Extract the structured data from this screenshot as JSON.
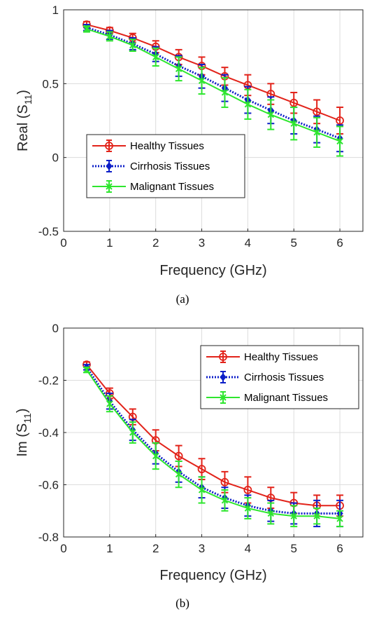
{
  "chart_data": [
    {
      "type": "line",
      "caption": "(a)",
      "xlabel": "Frequency (GHz)",
      "ylabel_main": "Real (S",
      "ylabel_sub": "11",
      "ylabel_end": ")",
      "xlim": [
        0,
        6.5
      ],
      "ylim": [
        -0.5,
        1
      ],
      "xticks": [
        0,
        1,
        2,
        3,
        4,
        5,
        6
      ],
      "xtick_labels": [
        "0",
        "1",
        "2",
        "3",
        "4",
        "5",
        "6"
      ],
      "yticks": [
        -0.5,
        0,
        0.5,
        1
      ],
      "ytick_labels": [
        "-0.5",
        "0",
        "0.5",
        "1"
      ],
      "grid": true,
      "legend_position": "left-lower",
      "x": [
        0.5,
        1,
        1.5,
        2,
        2.5,
        3,
        3.5,
        4,
        4.5,
        5,
        5.5,
        6
      ],
      "series": [
        {
          "name": "Healthy Tissues",
          "color": "#e2231a",
          "style": "solid-circle",
          "values": [
            0.9,
            0.86,
            0.81,
            0.75,
            0.68,
            0.62,
            0.55,
            0.49,
            0.43,
            0.37,
            0.31,
            0.25
          ],
          "errors": [
            0.02,
            0.02,
            0.03,
            0.04,
            0.05,
            0.06,
            0.06,
            0.07,
            0.07,
            0.07,
            0.08,
            0.09
          ]
        },
        {
          "name": "Cirrhosis Tissues",
          "color": "#0c1ec8",
          "style": "dotted-diamond",
          "values": [
            0.88,
            0.83,
            0.77,
            0.7,
            0.62,
            0.55,
            0.47,
            0.39,
            0.32,
            0.25,
            0.19,
            0.13
          ],
          "errors": [
            0.02,
            0.03,
            0.04,
            0.05,
            0.07,
            0.08,
            0.09,
            0.09,
            0.09,
            0.09,
            0.09,
            0.09
          ]
        },
        {
          "name": "Malignant Tissues",
          "color": "#2ee62e",
          "style": "solid-x",
          "values": [
            0.87,
            0.82,
            0.76,
            0.68,
            0.6,
            0.52,
            0.44,
            0.36,
            0.29,
            0.23,
            0.17,
            0.11
          ],
          "errors": [
            0.02,
            0.03,
            0.04,
            0.06,
            0.08,
            0.09,
            0.1,
            0.1,
            0.1,
            0.11,
            0.1,
            0.1
          ]
        }
      ]
    },
    {
      "type": "line",
      "caption": "(b)",
      "xlabel": "Frequency (GHz)",
      "ylabel_main": "Im (S",
      "ylabel_sub": "11",
      "ylabel_end": ")",
      "xlim": [
        0,
        6.5
      ],
      "ylim": [
        -0.8,
        0
      ],
      "xticks": [
        0,
        1,
        2,
        3,
        4,
        5,
        6
      ],
      "xtick_labels": [
        "0",
        "1",
        "2",
        "3",
        "4",
        "5",
        "6"
      ],
      "yticks": [
        -0.8,
        -0.6,
        -0.4,
        -0.2,
        0
      ],
      "ytick_labels": [
        "-0.8",
        "-0.6",
        "-0.4",
        "-0.2",
        "0"
      ],
      "grid": true,
      "legend_position": "top-right",
      "x": [
        0.5,
        1,
        1.5,
        2,
        2.5,
        3,
        3.5,
        4,
        4.5,
        5,
        5.5,
        6
      ],
      "series": [
        {
          "name": "Healthy Tissues",
          "color": "#e2231a",
          "style": "solid-circle",
          "values": [
            -0.14,
            -0.25,
            -0.34,
            -0.43,
            -0.49,
            -0.54,
            -0.59,
            -0.62,
            -0.65,
            -0.67,
            -0.68,
            -0.68
          ],
          "errors": [
            0.01,
            0.02,
            0.03,
            0.04,
            0.04,
            0.04,
            0.04,
            0.05,
            0.04,
            0.04,
            0.04,
            0.04
          ]
        },
        {
          "name": "Cirrhosis Tissues",
          "color": "#0c1ec8",
          "style": "dotted-diamond",
          "values": [
            -0.15,
            -0.28,
            -0.39,
            -0.48,
            -0.55,
            -0.61,
            -0.65,
            -0.68,
            -0.7,
            -0.71,
            -0.71,
            -0.71
          ],
          "errors": [
            0.01,
            0.03,
            0.04,
            0.04,
            0.04,
            0.04,
            0.04,
            0.04,
            0.04,
            0.04,
            0.05,
            0.05
          ]
        },
        {
          "name": "Malignant Tissues",
          "color": "#2ee62e",
          "style": "solid-x",
          "values": [
            -0.16,
            -0.29,
            -0.4,
            -0.49,
            -0.56,
            -0.62,
            -0.66,
            -0.69,
            -0.71,
            -0.72,
            -0.72,
            -0.73
          ],
          "errors": [
            0.01,
            0.03,
            0.04,
            0.05,
            0.05,
            0.05,
            0.04,
            0.04,
            0.04,
            0.04,
            0.03,
            0.03
          ]
        }
      ]
    }
  ]
}
